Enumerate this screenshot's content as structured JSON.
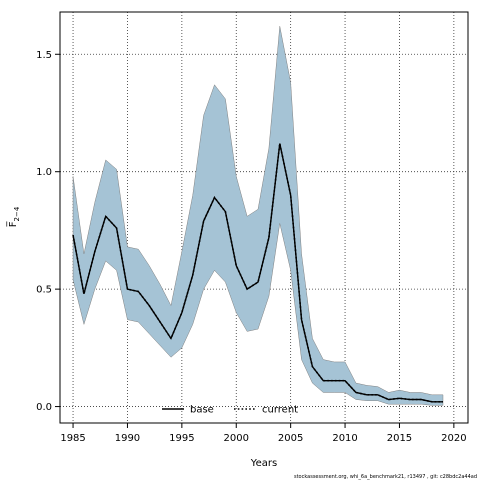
{
  "chart_data": {
    "type": "line",
    "title": "",
    "xlabel": "Years",
    "ylabel": "F̅ 2−4",
    "ylabel_main": "F̅",
    "ylabel_sub": "2−4",
    "xlim": [
      1983.8,
      2021.3
    ],
    "ylim": [
      -0.07,
      1.68
    ],
    "x_ticks": [
      1985,
      1990,
      1995,
      2000,
      2005,
      2010,
      2015,
      2020
    ],
    "y_ticks": [
      0.0,
      0.5,
      1.0,
      1.5
    ],
    "y_tick_labels": [
      "0.0",
      "0.5",
      "1.0",
      "1.5"
    ],
    "grid": true,
    "legend_position": "bottom-center",
    "colors": {
      "band_fill": "#a5c3d5",
      "band_edge": "#808080",
      "series": "#000000",
      "grid": "#333333"
    },
    "x": [
      1985,
      1986,
      1987,
      1988,
      1989,
      1990,
      1991,
      1992,
      1993,
      1994,
      1995,
      1996,
      1997,
      1998,
      1999,
      2000,
      2001,
      2002,
      2003,
      2004,
      2005,
      2006,
      2007,
      2008,
      2009,
      2010,
      2011,
      2012,
      2013,
      2014,
      2015,
      2016,
      2017,
      2018,
      2019
    ],
    "series": [
      {
        "name": "base",
        "style": "solid",
        "values": [
          0.73,
          0.48,
          0.66,
          0.81,
          0.76,
          0.5,
          0.49,
          0.43,
          0.36,
          0.29,
          0.4,
          0.56,
          0.79,
          0.89,
          0.83,
          0.6,
          0.5,
          0.53,
          0.72,
          1.12,
          0.9,
          0.37,
          0.17,
          0.11,
          0.11,
          0.11,
          0.06,
          0.05,
          0.05,
          0.03,
          0.035,
          0.03,
          0.03,
          0.02,
          0.02
        ]
      },
      {
        "name": "current",
        "style": "dotted",
        "values": [
          0.73,
          0.48,
          0.66,
          0.81,
          0.76,
          0.5,
          0.49,
          0.43,
          0.36,
          0.29,
          0.4,
          0.56,
          0.79,
          0.89,
          0.83,
          0.6,
          0.5,
          0.53,
          0.72,
          1.12,
          0.9,
          0.37,
          0.17,
          0.11,
          0.11,
          0.11,
          0.06,
          0.05,
          0.05,
          0.03,
          0.035,
          0.03,
          0.03,
          0.02,
          0.02
        ]
      }
    ],
    "band": {
      "upper": [
        0.98,
        0.65,
        0.87,
        1.05,
        1.01,
        0.68,
        0.67,
        0.6,
        0.52,
        0.43,
        0.66,
        0.9,
        1.24,
        1.37,
        1.31,
        0.98,
        0.81,
        0.84,
        1.1,
        1.62,
        1.38,
        0.65,
        0.29,
        0.2,
        0.19,
        0.19,
        0.1,
        0.09,
        0.085,
        0.06,
        0.07,
        0.06,
        0.06,
        0.05,
        0.05
      ],
      "lower": [
        0.54,
        0.35,
        0.5,
        0.62,
        0.58,
        0.37,
        0.36,
        0.31,
        0.26,
        0.21,
        0.25,
        0.35,
        0.5,
        0.58,
        0.53,
        0.4,
        0.32,
        0.33,
        0.47,
        0.78,
        0.58,
        0.2,
        0.1,
        0.06,
        0.06,
        0.06,
        0.03,
        0.025,
        0.025,
        0.01,
        0.01,
        0.01,
        0.01,
        0.005,
        0.005
      ]
    },
    "footer": "stockassessment.org, whi_6a_benchmark21, r13497 , git: c28bdc2a44ad"
  }
}
